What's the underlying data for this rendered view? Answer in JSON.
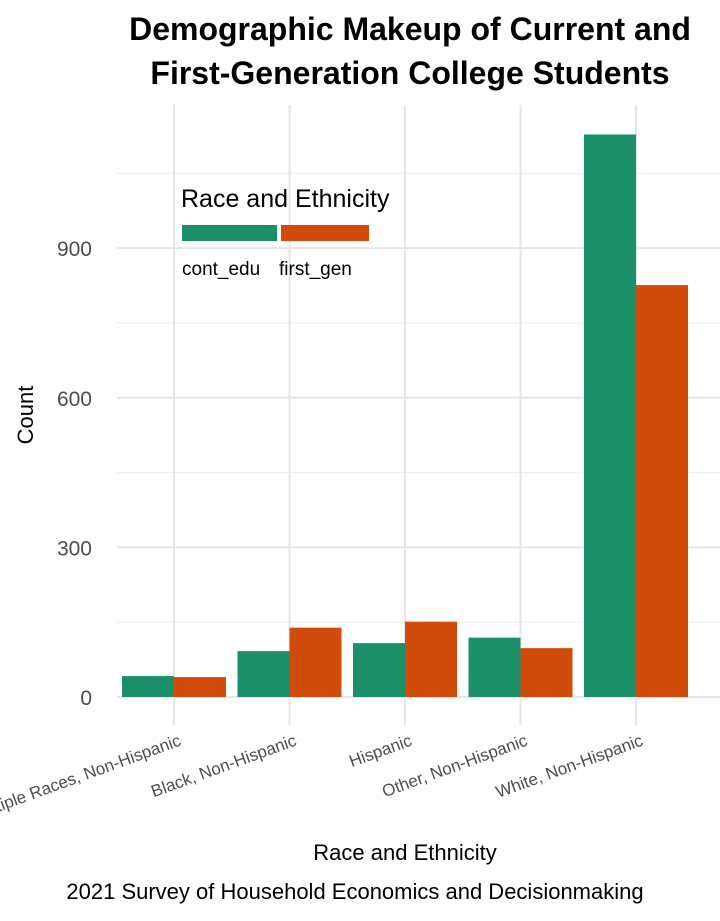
{
  "chart_data": {
    "type": "bar",
    "title_line1": "Demographic Makeup of Current and",
    "title_line2": "First-Generation College Students",
    "xlabel": "Race and Ethnicity",
    "ylabel": "Count",
    "caption": "2021 Survey of Household Economics and Decisionmaking",
    "categories": [
      "Multiple Races, Non-Hispanic",
      "Black, Non-Hispanic",
      "Hispanic",
      "Other, Non-Hispanic",
      "White, Non-Hispanic"
    ],
    "series": [
      {
        "name": "cont_edu",
        "color": "#1b9068",
        "values": [
          42,
          92,
          108,
          119,
          1128
        ]
      },
      {
        "name": "first_gen",
        "color": "#d14c0b",
        "values": [
          40,
          139,
          151,
          98,
          826
        ]
      }
    ],
    "legend": {
      "title": "Race and Ethnicity",
      "placement": "inside-top-left"
    },
    "yticks": [
      0,
      300,
      600,
      900
    ],
    "ytick_labels": [
      "0",
      "300",
      "600",
      "900"
    ],
    "ylim": [
      0,
      1128
    ],
    "grid": true
  }
}
